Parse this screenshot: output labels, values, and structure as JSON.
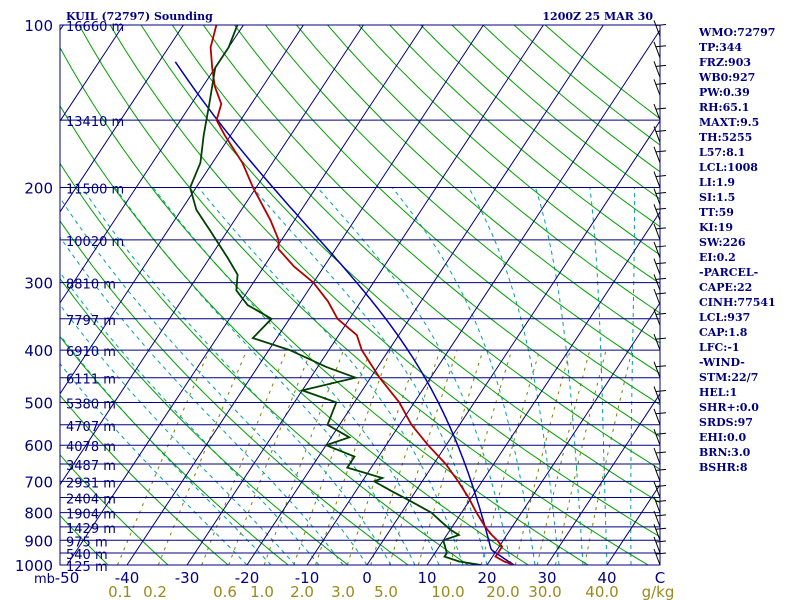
{
  "chart_data": {
    "type": "skew-t",
    "title_left": "KUIL (72797) Sounding",
    "title_right": "1200Z 25 MAR 30",
    "pressure_ticks": [
      "100",
      "200",
      "300",
      "400",
      "500",
      "600",
      "700",
      "800",
      "900",
      "1000"
    ],
    "pressure_unit": "mb",
    "temperature_ticks": [
      "-50",
      "-40",
      "-30",
      "-20",
      "-10",
      "0",
      "10",
      "20",
      "30",
      "40",
      "C"
    ],
    "mixing_ratio_ticks": [
      "0.1",
      "0.2",
      "0.6",
      "1.0",
      "2.0",
      "3.0",
      "5.0",
      "10.0",
      "20.0",
      "30.0",
      "40.0",
      "g/kg"
    ],
    "height_labels": [
      {
        "p": 100,
        "label": "16660 m"
      },
      {
        "p": 150,
        "label": "13410 m"
      },
      {
        "p": 200,
        "label": "11500 m"
      },
      {
        "p": 250,
        "label": "10020 m"
      },
      {
        "p": 300,
        "label": "8810 m"
      },
      {
        "p": 350,
        "label": "7797 m"
      },
      {
        "p": 400,
        "label": "6910 m"
      },
      {
        "p": 450,
        "label": "6111 m"
      },
      {
        "p": 500,
        "label": "5380 m"
      },
      {
        "p": 550,
        "label": "4707 m"
      },
      {
        "p": 600,
        "label": "4078 m"
      },
      {
        "p": 650,
        "label": "3487 m"
      },
      {
        "p": 700,
        "label": "2931 m"
      },
      {
        "p": 750,
        "label": "2404 m"
      },
      {
        "p": 800,
        "label": "1904 m"
      },
      {
        "p": 850,
        "label": "1429 m"
      },
      {
        "p": 900,
        "label": "975 m"
      },
      {
        "p": 950,
        "label": "540 m"
      },
      {
        "p": 1000,
        "label": "125 m"
      }
    ],
    "temperature": [
      {
        "p": 1000,
        "t": 24.5
      },
      {
        "p": 985,
        "t": 22.5
      },
      {
        "p": 965,
        "t": 20.5
      },
      {
        "p": 950,
        "t": 20.5
      },
      {
        "p": 925,
        "t": 20.5
      },
      {
        "p": 900,
        "t": 19.0
      },
      {
        "p": 880,
        "t": 17.5
      },
      {
        "p": 850,
        "t": 15.5
      },
      {
        "p": 800,
        "t": 12.5
      },
      {
        "p": 750,
        "t": 9.5
      },
      {
        "p": 700,
        "t": 6.0
      },
      {
        "p": 650,
        "t": 2.0
      },
      {
        "p": 600,
        "t": -3.0
      },
      {
        "p": 550,
        "t": -8.0
      },
      {
        "p": 500,
        "t": -12.5
      },
      {
        "p": 450,
        "t": -18.5
      },
      {
        "p": 400,
        "t": -24.5
      },
      {
        "p": 375,
        "t": -27.0
      },
      {
        "p": 350,
        "t": -32.0
      },
      {
        "p": 325,
        "t": -35.5
      },
      {
        "p": 300,
        "t": -40.0
      },
      {
        "p": 280,
        "t": -45.0
      },
      {
        "p": 260,
        "t": -49.5
      },
      {
        "p": 250,
        "t": -50.5
      },
      {
        "p": 230,
        "t": -54.0
      },
      {
        "p": 200,
        "t": -60.5
      },
      {
        "p": 180,
        "t": -65.0
      },
      {
        "p": 160,
        "t": -71.0
      },
      {
        "p": 150,
        "t": -74.0
      },
      {
        "p": 140,
        "t": -75.0
      },
      {
        "p": 130,
        "t": -78.0
      },
      {
        "p": 120,
        "t": -80.5
      },
      {
        "p": 110,
        "t": -83.0
      },
      {
        "p": 100,
        "t": -84.5
      }
    ],
    "dewpoint": [
      {
        "p": 1000,
        "t": 19.0
      },
      {
        "p": 985,
        "t": 15.0
      },
      {
        "p": 965,
        "t": 12.0
      },
      {
        "p": 950,
        "t": 12.0
      },
      {
        "p": 925,
        "t": 11.0
      },
      {
        "p": 900,
        "t": 10.0
      },
      {
        "p": 880,
        "t": 12.0
      },
      {
        "p": 860,
        "t": 10.0
      },
      {
        "p": 830,
        "t": 7.5
      },
      {
        "p": 800,
        "t": 5.0
      },
      {
        "p": 760,
        "t": 0.0
      },
      {
        "p": 730,
        "t": -4.0
      },
      {
        "p": 700,
        "t": -8.0
      },
      {
        "p": 690,
        "t": -7.0
      },
      {
        "p": 660,
        "t": -14.0
      },
      {
        "p": 630,
        "t": -14.0
      },
      {
        "p": 600,
        "t": -20.0
      },
      {
        "p": 580,
        "t": -17.0
      },
      {
        "p": 550,
        "t": -22.0
      },
      {
        "p": 500,
        "t": -23.0
      },
      {
        "p": 475,
        "t": -30.0
      },
      {
        "p": 450,
        "t": -22.5
      },
      {
        "p": 430,
        "t": -28.5
      },
      {
        "p": 400,
        "t": -36.5
      },
      {
        "p": 380,
        "t": -44.0
      },
      {
        "p": 350,
        "t": -43.0
      },
      {
        "p": 330,
        "t": -48.5
      },
      {
        "p": 310,
        "t": -52.0
      },
      {
        "p": 290,
        "t": -53.5
      },
      {
        "p": 270,
        "t": -57.0
      },
      {
        "p": 240,
        "t": -63.0
      },
      {
        "p": 220,
        "t": -67.5
      },
      {
        "p": 200,
        "t": -71.0
      },
      {
        "p": 180,
        "t": -72.0
      },
      {
        "p": 160,
        "t": -74.5
      },
      {
        "p": 140,
        "t": -77.0
      },
      {
        "p": 120,
        "t": -80.0
      },
      {
        "p": 110,
        "t": -80.0
      },
      {
        "p": 100,
        "t": -81.0
      }
    ],
    "indices": [
      "WMO:72797",
      "TP:344",
      "FRZ:903",
      "WB0:927",
      "PW:0.39",
      "RH:65.1",
      "MAXT:9.5",
      "TH:5255",
      "L57:8.1",
      "LCL:1008",
      "LI:1.9",
      "SI:1.5",
      "TT:59",
      "KI:19",
      "SW:226",
      "EI:0.2",
      "-PARCEL-",
      "CAPE:22",
      "CINH:77541",
      "LCL:937",
      "CAP:1.8",
      "LFC:-1",
      "-WIND-",
      "STM:22/7",
      "HEL:1",
      "SHR+:0.0",
      "SRDS:97",
      "EHI:0.0",
      "BRN:3.0",
      "BSHR:8"
    ],
    "colors": {
      "frame": "#000080",
      "isobar": "#000080",
      "isotherm": "#000080",
      "dry_adiabat": "#00a000",
      "moist_adiabat": "#00a0a0",
      "mixing_ratio": "#808000",
      "temperature": "#b00000",
      "dewpoint": "#004000",
      "parcel": "#0000b0"
    }
  }
}
